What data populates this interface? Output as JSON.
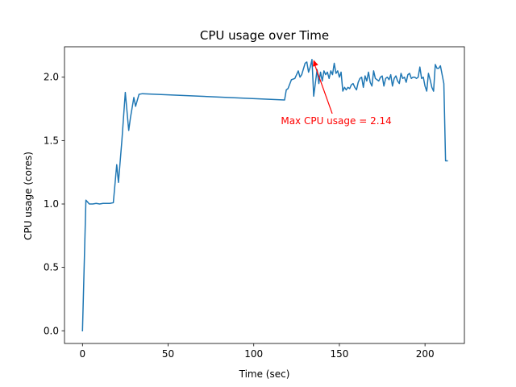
{
  "chart_data": {
    "type": "line",
    "title": "CPU usage over Time",
    "xlabel": "Time (sec)",
    "ylabel": "CPU usage (cores)",
    "xlim": [
      -10.5,
      223
    ],
    "ylim": [
      -0.1,
      2.24
    ],
    "xticks": [
      0,
      50,
      100,
      150,
      200
    ],
    "xtick_labels": [
      "0",
      "50",
      "100",
      "150",
      "200"
    ],
    "yticks": [
      0.0,
      0.5,
      1.0,
      1.5,
      2.0
    ],
    "ytick_labels": [
      "0.0",
      "0.5",
      "1.0",
      "1.5",
      "2.0"
    ],
    "grid": false,
    "series": [
      {
        "color": "#1f77b4",
        "x": [
          0,
          2,
          4,
          6,
          8,
          10,
          12,
          14,
          16,
          18,
          20,
          21,
          23,
          25,
          27,
          28,
          30,
          31,
          33,
          35,
          118,
          119,
          120,
          122,
          124,
          126,
          127,
          128,
          130,
          131,
          132,
          133,
          134,
          135,
          137,
          138,
          139,
          140,
          141,
          142,
          143,
          144,
          145,
          146,
          147,
          148,
          149,
          150,
          151,
          152,
          153,
          154,
          155,
          156,
          157,
          158,
          159,
          160,
          161,
          162,
          163,
          164,
          165,
          166,
          167,
          168,
          169,
          170,
          171,
          172,
          173,
          174,
          175,
          176,
          177,
          178,
          179,
          180,
          181,
          182,
          183,
          184,
          185,
          186,
          187,
          188,
          189,
          190,
          191,
          192,
          193,
          194,
          195,
          196,
          197,
          198,
          199,
          200,
          201,
          202,
          203,
          204,
          205,
          206,
          207,
          208,
          209,
          210,
          211,
          212,
          213
        ],
        "y": [
          0.0,
          1.03,
          1.0,
          1.0,
          1.005,
          1.0,
          1.005,
          1.005,
          1.005,
          1.01,
          1.31,
          1.17,
          1.5,
          1.88,
          1.58,
          1.68,
          1.84,
          1.77,
          1.865,
          1.87,
          1.82,
          1.9,
          1.91,
          1.98,
          1.99,
          2.05,
          2.0,
          2.02,
          2.11,
          2.12,
          2.04,
          2.08,
          2.14,
          1.85,
          2.06,
          1.95,
          2.04,
          1.97,
          2.05,
          2.02,
          2.04,
          1.99,
          2.05,
          2.02,
          2.11,
          2.03,
          2.05,
          2.0,
          2.04,
          1.89,
          1.92,
          1.9,
          1.92,
          1.91,
          1.94,
          1.95,
          1.92,
          1.9,
          1.96,
          1.99,
          2.0,
          1.92,
          2.01,
          1.97,
          2.04,
          1.96,
          1.93,
          2.05,
          1.99,
          1.98,
          1.97,
          2.0,
          2.01,
          1.93,
          1.99,
          2.0,
          1.98,
          2.02,
          1.93,
          1.99,
          2.01,
          1.97,
          1.95,
          2.03,
          1.99,
          2.0,
          1.96,
          2.02,
          2.03,
          1.99,
          2.0,
          2.0,
          1.99,
          2.0,
          2.08,
          1.99,
          2.0,
          1.93,
          1.89,
          2.03,
          1.98,
          1.92,
          1.89,
          2.1,
          2.07,
          2.07,
          2.09,
          2.02,
          1.95,
          1.34,
          1.34
        ]
      }
    ],
    "annotation": {
      "text": "Max CPU usage = 2.14",
      "color": "#ff0000",
      "point": [
        135,
        2.14
      ],
      "text_pos": [
        135,
        1.63
      ]
    }
  }
}
